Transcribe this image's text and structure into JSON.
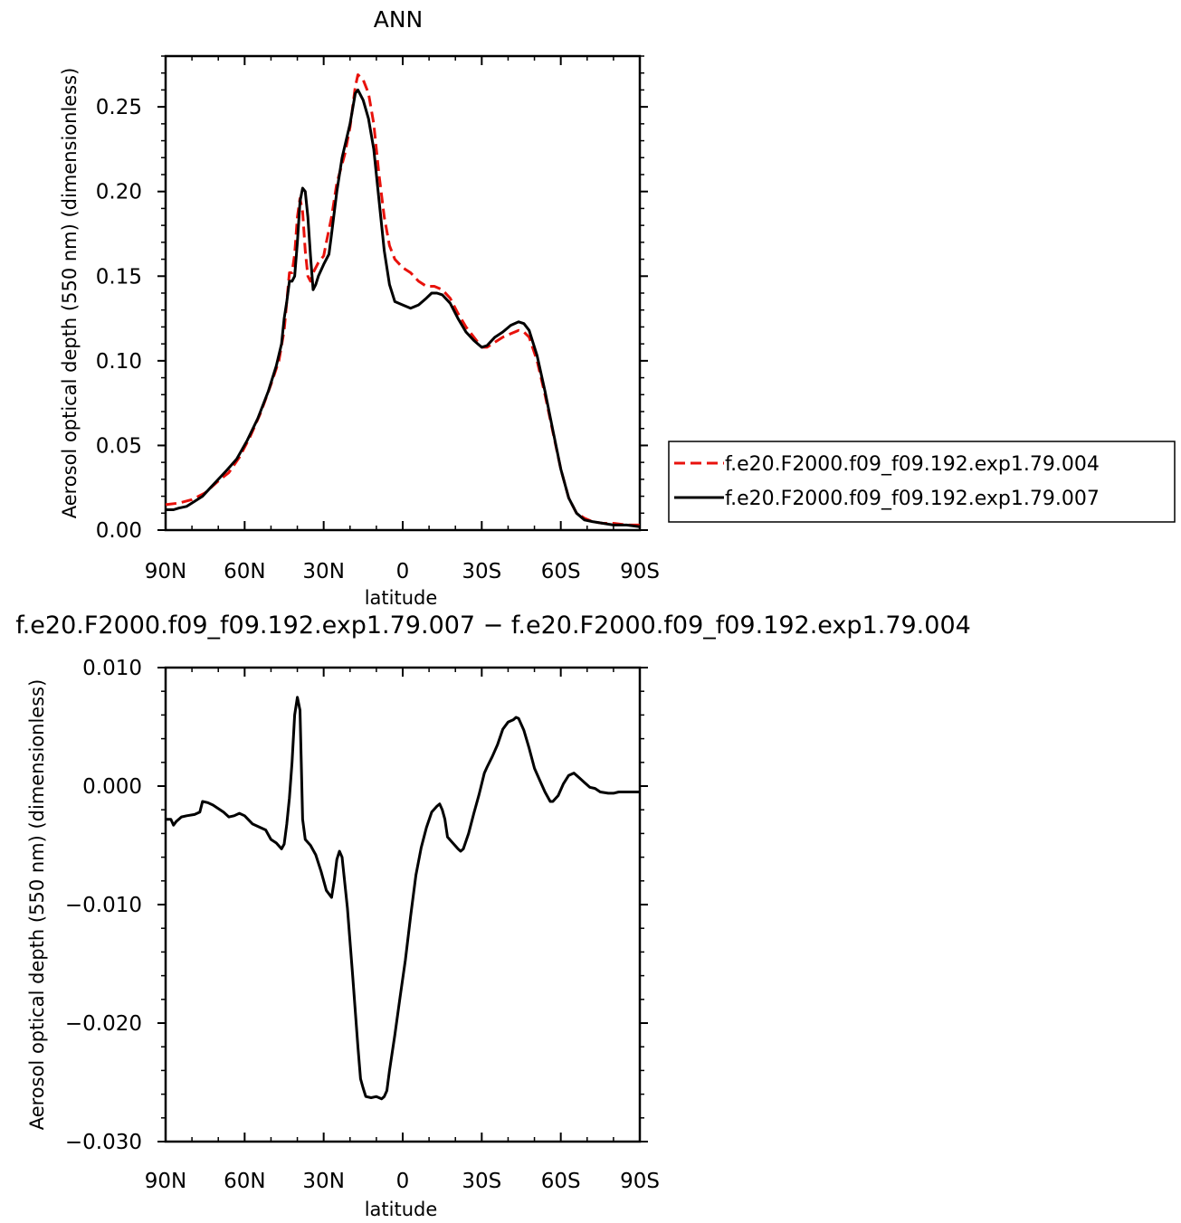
{
  "chart_data": [
    {
      "type": "line",
      "title": "ANN",
      "xlabel": "latitude",
      "ylabel": "Aerosol optical depth (550 nm) (dimensionless)",
      "xlim": [
        90,
        -90
      ],
      "ylim": [
        0,
        0.28
      ],
      "x_ticks": [
        {
          "value": 90,
          "label": "90N"
        },
        {
          "value": 60,
          "label": "60N"
        },
        {
          "value": 30,
          "label": "30N"
        },
        {
          "value": 0,
          "label": "0"
        },
        {
          "value": -30,
          "label": "30S"
        },
        {
          "value": -60,
          "label": "60S"
        },
        {
          "value": -90,
          "label": "90S"
        }
      ],
      "y_ticks": [
        {
          "value": 0.0,
          "label": "0.00"
        },
        {
          "value": 0.05,
          "label": "0.05"
        },
        {
          "value": 0.1,
          "label": "0.10"
        },
        {
          "value": 0.15,
          "label": "0.15"
        },
        {
          "value": 0.2,
          "label": "0.20"
        },
        {
          "value": 0.25,
          "label": "0.25"
        }
      ],
      "legend_position": "right",
      "series": [
        {
          "name": "f.e20.F2000.f09_f09.192.exp1.79.004",
          "color": "#e8120c",
          "dash": "dashed",
          "points": [
            [
              90,
              0.015
            ],
            [
              85,
              0.016
            ],
            [
              80,
              0.018
            ],
            [
              75,
              0.022
            ],
            [
              70,
              0.029
            ],
            [
              66,
              0.034
            ],
            [
              62,
              0.043
            ],
            [
              58,
              0.055
            ],
            [
              54,
              0.069
            ],
            [
              50,
              0.086
            ],
            [
              47,
              0.1
            ],
            [
              45,
              0.118
            ],
            [
              44,
              0.135
            ],
            [
              43,
              0.152
            ],
            [
              42,
              0.152
            ],
            [
              41,
              0.163
            ],
            [
              40,
              0.185
            ],
            [
              39,
              0.196
            ],
            [
              38,
              0.188
            ],
            [
              37,
              0.165
            ],
            [
              36,
              0.15
            ],
            [
              35,
              0.147
            ],
            [
              34,
              0.152
            ],
            [
              32,
              0.158
            ],
            [
              30,
              0.162
            ],
            [
              29,
              0.17
            ],
            [
              27,
              0.185
            ],
            [
              25,
              0.205
            ],
            [
              22,
              0.222
            ],
            [
              20,
              0.238
            ],
            [
              18,
              0.262
            ],
            [
              17,
              0.269
            ],
            [
              15,
              0.266
            ],
            [
              13,
              0.258
            ],
            [
              11,
              0.24
            ],
            [
              9,
              0.21
            ],
            [
              7,
              0.185
            ],
            [
              5,
              0.168
            ],
            [
              3,
              0.16
            ],
            [
              0,
              0.155
            ],
            [
              -3,
              0.152
            ],
            [
              -6,
              0.147
            ],
            [
              -9,
              0.144
            ],
            [
              -12,
              0.144
            ],
            [
              -15,
              0.142
            ],
            [
              -18,
              0.137
            ],
            [
              -21,
              0.128
            ],
            [
              -24,
              0.12
            ],
            [
              -27,
              0.114
            ],
            [
              -30,
              0.108
            ],
            [
              -32,
              0.108
            ],
            [
              -35,
              0.111
            ],
            [
              -38,
              0.114
            ],
            [
              -41,
              0.116
            ],
            [
              -44,
              0.118
            ],
            [
              -46,
              0.117
            ],
            [
              -48,
              0.114
            ],
            [
              -51,
              0.1
            ],
            [
              -54,
              0.08
            ],
            [
              -57,
              0.058
            ],
            [
              -60,
              0.036
            ],
            [
              -63,
              0.019
            ],
            [
              -66,
              0.01
            ],
            [
              -69,
              0.007
            ],
            [
              -72,
              0.005
            ],
            [
              -76,
              0.004
            ],
            [
              -80,
              0.004
            ],
            [
              -85,
              0.003
            ],
            [
              -90,
              0.003
            ]
          ]
        },
        {
          "name": "f.e20.F2000.f09_f09.192.exp1.79.007",
          "color": "#000000",
          "dash": "solid",
          "points": [
            [
              90,
              0.012
            ],
            [
              87,
              0.012
            ],
            [
              85,
              0.013
            ],
            [
              82,
              0.014
            ],
            [
              79,
              0.017
            ],
            [
              76,
              0.02
            ],
            [
              73,
              0.025
            ],
            [
              70,
              0.03
            ],
            [
              67,
              0.035
            ],
            [
              63,
              0.042
            ],
            [
              59,
              0.053
            ],
            [
              55,
              0.066
            ],
            [
              51,
              0.082
            ],
            [
              48,
              0.097
            ],
            [
              46,
              0.11
            ],
            [
              45,
              0.125
            ],
            [
              44,
              0.135
            ],
            [
              43,
              0.147
            ],
            [
              42,
              0.147
            ],
            [
              41,
              0.15
            ],
            [
              40,
              0.17
            ],
            [
              39,
              0.194
            ],
            [
              38,
              0.202
            ],
            [
              37,
              0.2
            ],
            [
              36,
              0.185
            ],
            [
              35,
              0.162
            ],
            [
              34,
              0.142
            ],
            [
              33,
              0.145
            ],
            [
              32,
              0.15
            ],
            [
              30,
              0.157
            ],
            [
              28,
              0.163
            ],
            [
              27,
              0.175
            ],
            [
              25,
              0.2
            ],
            [
              23,
              0.22
            ],
            [
              20,
              0.24
            ],
            [
              18,
              0.258
            ],
            [
              17,
              0.26
            ],
            [
              15,
              0.254
            ],
            [
              13,
              0.243
            ],
            [
              11,
              0.225
            ],
            [
              9,
              0.195
            ],
            [
              7,
              0.165
            ],
            [
              5,
              0.145
            ],
            [
              3,
              0.135
            ],
            [
              0,
              0.133
            ],
            [
              -3,
              0.131
            ],
            [
              -6,
              0.133
            ],
            [
              -9,
              0.137
            ],
            [
              -11,
              0.14
            ],
            [
              -13,
              0.14
            ],
            [
              -15,
              0.139
            ],
            [
              -18,
              0.134
            ],
            [
              -21,
              0.125
            ],
            [
              -24,
              0.117
            ],
            [
              -27,
              0.112
            ],
            [
              -30,
              0.108
            ],
            [
              -32,
              0.109
            ],
            [
              -35,
              0.114
            ],
            [
              -38,
              0.117
            ],
            [
              -41,
              0.121
            ],
            [
              -44,
              0.123
            ],
            [
              -46,
              0.122
            ],
            [
              -48,
              0.118
            ],
            [
              -51,
              0.103
            ],
            [
              -54,
              0.082
            ],
            [
              -57,
              0.059
            ],
            [
              -60,
              0.036
            ],
            [
              -63,
              0.019
            ],
            [
              -66,
              0.01
            ],
            [
              -69,
              0.006
            ],
            [
              -72,
              0.005
            ],
            [
              -76,
              0.004
            ],
            [
              -80,
              0.003
            ],
            [
              -85,
              0.003
            ],
            [
              -90,
              0.002
            ]
          ]
        }
      ]
    },
    {
      "type": "line",
      "title": "f.e20.F2000.f09_f09.192.exp1.79.007 − f.e20.F2000.f09_f09.192.exp1.79.004",
      "xlabel": "latitude",
      "ylabel": "Aerosol optical depth (550 nm) (dimensionless)",
      "xlim": [
        90,
        -90
      ],
      "ylim": [
        -0.03,
        0.01
      ],
      "x_ticks": [
        {
          "value": 90,
          "label": "90N"
        },
        {
          "value": 60,
          "label": "60N"
        },
        {
          "value": 30,
          "label": "30N"
        },
        {
          "value": 0,
          "label": "0"
        },
        {
          "value": -30,
          "label": "30S"
        },
        {
          "value": -60,
          "label": "60S"
        },
        {
          "value": -90,
          "label": "90S"
        }
      ],
      "y_ticks": [
        {
          "value": -0.03,
          "label": "−0.030"
        },
        {
          "value": -0.02,
          "label": "−0.020"
        },
        {
          "value": -0.01,
          "label": "−0.010"
        },
        {
          "value": 0.0,
          "label": "0.000"
        },
        {
          "value": 0.01,
          "label": "0.010"
        }
      ],
      "series": [
        {
          "name": "",
          "color": "#000000",
          "dash": "solid",
          "points": [
            [
              90,
              -0.0028
            ],
            [
              88,
              -0.0028
            ],
            [
              87,
              -0.0033
            ],
            [
              86,
              -0.003
            ],
            [
              84,
              -0.0026
            ],
            [
              82,
              -0.0025
            ],
            [
              79,
              -0.0024
            ],
            [
              77,
              -0.0022
            ],
            [
              76,
              -0.0013
            ],
            [
              74,
              -0.0014
            ],
            [
              72,
              -0.0016
            ],
            [
              70,
              -0.0019
            ],
            [
              68,
              -0.0022
            ],
            [
              66,
              -0.0026
            ],
            [
              64,
              -0.0025
            ],
            [
              62,
              -0.0023
            ],
            [
              60,
              -0.0025
            ],
            [
              57,
              -0.0032
            ],
            [
              54,
              -0.0035
            ],
            [
              52,
              -0.0037
            ],
            [
              50,
              -0.0045
            ],
            [
              48,
              -0.0048
            ],
            [
              46,
              -0.0053
            ],
            [
              45,
              -0.0049
            ],
            [
              44,
              -0.0032
            ],
            [
              43,
              -0.001
            ],
            [
              42,
              0.002
            ],
            [
              41,
              0.006
            ],
            [
              40,
              0.0075
            ],
            [
              39,
              0.0064
            ],
            [
              38.5,
              0.002
            ],
            [
              38,
              -0.0028
            ],
            [
              37,
              -0.0045
            ],
            [
              35,
              -0.005
            ],
            [
              33,
              -0.0058
            ],
            [
              31,
              -0.0072
            ],
            [
              29,
              -0.0088
            ],
            [
              27,
              -0.0094
            ],
            [
              26,
              -0.008
            ],
            [
              25,
              -0.0062
            ],
            [
              24,
              -0.0055
            ],
            [
              23,
              -0.006
            ],
            [
              21,
              -0.0103
            ],
            [
              19,
              -0.016
            ],
            [
              17,
              -0.022
            ],
            [
              16,
              -0.0247
            ],
            [
              15,
              -0.0255
            ],
            [
              14,
              -0.0262
            ],
            [
              12,
              -0.0263
            ],
            [
              10,
              -0.0262
            ],
            [
              8,
              -0.0264
            ],
            [
              7,
              -0.0262
            ],
            [
              6,
              -0.0257
            ],
            [
              5,
              -0.024
            ],
            [
              3,
              -0.021
            ],
            [
              1,
              -0.0178
            ],
            [
              -1,
              -0.0147
            ],
            [
              -3,
              -0.011
            ],
            [
              -5,
              -0.0075
            ],
            [
              -7,
              -0.0052
            ],
            [
              -9,
              -0.0035
            ],
            [
              -11,
              -0.0022
            ],
            [
              -13,
              -0.0017
            ],
            [
              -14,
              -0.0015
            ],
            [
              -15,
              -0.002
            ],
            [
              -16,
              -0.0028
            ],
            [
              -17,
              -0.0043
            ],
            [
              -19,
              -0.0048
            ],
            [
              -21,
              -0.0053
            ],
            [
              -22,
              -0.0055
            ],
            [
              -23,
              -0.0053
            ],
            [
              -25,
              -0.004
            ],
            [
              -27,
              -0.0023
            ],
            [
              -29,
              -0.0007
            ],
            [
              -31,
              0.0011
            ],
            [
              -32,
              0.0016
            ],
            [
              -34,
              0.0025
            ],
            [
              -36,
              0.0035
            ],
            [
              -38,
              0.0048
            ],
            [
              -40,
              0.0054
            ],
            [
              -42,
              0.0056
            ],
            [
              -43,
              0.0058
            ],
            [
              -44,
              0.0057
            ],
            [
              -46,
              0.0047
            ],
            [
              -48,
              0.0032
            ],
            [
              -50,
              0.0015
            ],
            [
              -52,
              0.0005
            ],
            [
              -54,
              -0.0005
            ],
            [
              -56,
              -0.0013
            ],
            [
              -57,
              -0.0013
            ],
            [
              -59,
              -0.0008
            ],
            [
              -61,
              0.0002
            ],
            [
              -63,
              0.0009
            ],
            [
              -65,
              0.0011
            ],
            [
              -67,
              0.0007
            ],
            [
              -69,
              0.0003
            ],
            [
              -71,
              -0.0001
            ],
            [
              -73,
              -0.0002
            ],
            [
              -75,
              -0.0005
            ],
            [
              -78,
              -0.0006
            ],
            [
              -80,
              -0.0006
            ],
            [
              -82,
              -0.0005
            ],
            [
              -85,
              -0.0005
            ],
            [
              -88,
              -0.0005
            ],
            [
              -90,
              -0.0005
            ]
          ]
        }
      ]
    }
  ]
}
